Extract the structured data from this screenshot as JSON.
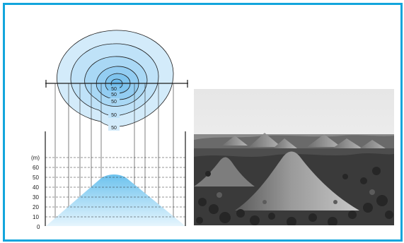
{
  "contour_labels": [
    "50",
    "50",
    "50",
    "50",
    "50"
  ],
  "axis": {
    "unit_label": "(m)",
    "ticks": [
      "60",
      "50",
      "40",
      "30",
      "20",
      "10",
      "0"
    ]
  },
  "colors": {
    "frame_border": "#12a5dc",
    "contour_fill_light": "#cfe8fa",
    "contour_fill_dark": "#7fc4ee",
    "profile_top": "#6cc2ee",
    "profile_bottom": "#e4f4fc"
  },
  "photo": {
    "subject": "conical mounds landscape"
  }
}
